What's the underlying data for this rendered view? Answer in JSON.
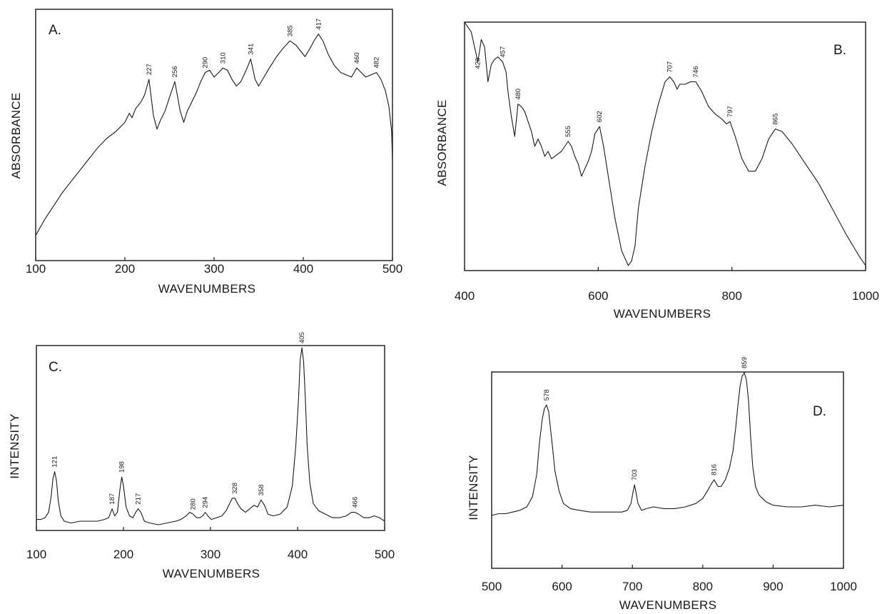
{
  "chart_data": [
    {
      "id": "A",
      "type": "line",
      "panel_label": "A.",
      "xlabel": "WAVENUMBERS",
      "ylabel": "ABSORBANCE",
      "xlim": [
        100,
        500
      ],
      "ylim": [
        0,
        1
      ],
      "xticks": [
        100,
        200,
        300,
        400,
        500
      ],
      "grid": false,
      "peaks": [
        227,
        256,
        290,
        310,
        341,
        385,
        417,
        460,
        482
      ],
      "x": [
        100,
        110,
        120,
        130,
        140,
        150,
        160,
        170,
        180,
        190,
        200,
        205,
        208,
        212,
        218,
        222,
        227,
        232,
        236,
        240,
        245,
        250,
        256,
        262,
        266,
        270,
        275,
        280,
        285,
        290,
        295,
        300,
        305,
        310,
        315,
        320,
        325,
        330,
        336,
        341,
        346,
        350,
        356,
        362,
        370,
        378,
        385,
        392,
        398,
        402,
        408,
        412,
        417,
        422,
        428,
        435,
        442,
        448,
        454,
        460,
        465,
        470,
        476,
        482,
        487,
        492,
        496,
        499,
        500
      ],
      "y": [
        0.07,
        0.14,
        0.2,
        0.26,
        0.31,
        0.36,
        0.41,
        0.46,
        0.5,
        0.53,
        0.57,
        0.61,
        0.59,
        0.63,
        0.66,
        0.69,
        0.76,
        0.6,
        0.54,
        0.58,
        0.62,
        0.68,
        0.75,
        0.62,
        0.57,
        0.62,
        0.66,
        0.7,
        0.75,
        0.79,
        0.8,
        0.77,
        0.79,
        0.81,
        0.8,
        0.76,
        0.73,
        0.75,
        0.8,
        0.85,
        0.76,
        0.73,
        0.77,
        0.81,
        0.86,
        0.9,
        0.93,
        0.91,
        0.88,
        0.86,
        0.9,
        0.93,
        0.96,
        0.93,
        0.87,
        0.82,
        0.79,
        0.78,
        0.77,
        0.81,
        0.79,
        0.77,
        0.78,
        0.79,
        0.76,
        0.71,
        0.64,
        0.53,
        0.4
      ]
    },
    {
      "id": "B",
      "type": "line",
      "panel_label": "B.",
      "xlabel": "WAVENUMBERS",
      "ylabel": "ABSORBANCE",
      "xlim": [
        400,
        1000
      ],
      "ylim": [
        0,
        1
      ],
      "xticks": [
        400,
        600,
        800,
        1000
      ],
      "grid": false,
      "peaks": [
        420,
        457,
        480,
        555,
        602,
        707,
        746,
        797,
        865
      ],
      "x": [
        400,
        410,
        415,
        420,
        425,
        430,
        435,
        440,
        445,
        450,
        457,
        462,
        465,
        470,
        475,
        480,
        485,
        490,
        495,
        500,
        505,
        510,
        515,
        520,
        525,
        530,
        535,
        540,
        545,
        550,
        555,
        560,
        565,
        570,
        575,
        580,
        585,
        590,
        595,
        602,
        608,
        615,
        625,
        635,
        645,
        650,
        655,
        660,
        670,
        680,
        690,
        700,
        707,
        713,
        718,
        722,
        730,
        738,
        746,
        755,
        765,
        775,
        785,
        792,
        797,
        805,
        815,
        825,
        835,
        845,
        855,
        865,
        875,
        890,
        910,
        930,
        950,
        970,
        990,
        1000
      ],
      "y": [
        1.0,
        0.96,
        0.9,
        0.84,
        0.93,
        0.9,
        0.76,
        0.83,
        0.85,
        0.86,
        0.84,
        0.8,
        0.72,
        0.62,
        0.54,
        0.67,
        0.66,
        0.64,
        0.6,
        0.56,
        0.5,
        0.53,
        0.5,
        0.46,
        0.48,
        0.45,
        0.46,
        0.47,
        0.48,
        0.5,
        0.52,
        0.5,
        0.46,
        0.43,
        0.38,
        0.41,
        0.44,
        0.48,
        0.55,
        0.58,
        0.5,
        0.38,
        0.21,
        0.08,
        0.02,
        0.04,
        0.1,
        0.25,
        0.42,
        0.56,
        0.67,
        0.76,
        0.78,
        0.76,
        0.73,
        0.75,
        0.75,
        0.76,
        0.76,
        0.72,
        0.66,
        0.63,
        0.61,
        0.59,
        0.6,
        0.54,
        0.45,
        0.4,
        0.4,
        0.45,
        0.53,
        0.57,
        0.56,
        0.51,
        0.43,
        0.35,
        0.25,
        0.15,
        0.06,
        0.02
      ]
    },
    {
      "id": "C",
      "type": "line",
      "panel_label": "C.",
      "xlabel": "WAVENUMBERS",
      "ylabel": "INTENSITY",
      "xlim": [
        100,
        500
      ],
      "ylim": [
        0,
        1
      ],
      "xticks": [
        100,
        200,
        300,
        400,
        500
      ],
      "grid": false,
      "peaks": [
        121,
        187,
        198,
        217,
        280,
        294,
        328,
        358,
        405,
        466
      ],
      "x": [
        100,
        105,
        110,
        114,
        117,
        119,
        121,
        123,
        125,
        128,
        132,
        140,
        150,
        160,
        170,
        178,
        183,
        187,
        190,
        193,
        196,
        198,
        200,
        203,
        207,
        211,
        214,
        217,
        220,
        224,
        230,
        240,
        250,
        260,
        266,
        272,
        276,
        280,
        284,
        288,
        291,
        294,
        297,
        301,
        307,
        313,
        318,
        322,
        325,
        328,
        331,
        335,
        340,
        345,
        350,
        354,
        358,
        362,
        366,
        372,
        380,
        388,
        394,
        398,
        401,
        403,
        405,
        407,
        409,
        411,
        414,
        418,
        424,
        432,
        440,
        448,
        456,
        462,
        466,
        470,
        476,
        482,
        488,
        494,
        500
      ],
      "y": [
        0.03,
        0.03,
        0.04,
        0.07,
        0.16,
        0.26,
        0.3,
        0.25,
        0.14,
        0.05,
        0.02,
        0.01,
        0.02,
        0.02,
        0.02,
        0.03,
        0.04,
        0.09,
        0.05,
        0.07,
        0.2,
        0.27,
        0.22,
        0.1,
        0.05,
        0.04,
        0.07,
        0.09,
        0.07,
        0.02,
        0.01,
        0.0,
        0.01,
        0.02,
        0.03,
        0.05,
        0.07,
        0.06,
        0.04,
        0.04,
        0.05,
        0.07,
        0.05,
        0.03,
        0.04,
        0.05,
        0.08,
        0.12,
        0.15,
        0.15,
        0.12,
        0.09,
        0.07,
        0.09,
        0.11,
        0.1,
        0.14,
        0.11,
        0.06,
        0.05,
        0.06,
        0.1,
        0.22,
        0.45,
        0.7,
        0.93,
        1.0,
        0.92,
        0.7,
        0.45,
        0.24,
        0.12,
        0.08,
        0.06,
        0.04,
        0.04,
        0.05,
        0.07,
        0.07,
        0.06,
        0.04,
        0.04,
        0.05,
        0.04,
        0.02
      ]
    },
    {
      "id": "D",
      "type": "line",
      "panel_label": "D.",
      "xlabel": "WAVENUMBERS",
      "ylabel": "INTENSITY",
      "xlim": [
        500,
        1000
      ],
      "ylim": [
        0,
        1
      ],
      "xticks": [
        500,
        600,
        700,
        800,
        900,
        1000
      ],
      "grid": false,
      "peaks": [
        578,
        703,
        816,
        859
      ],
      "x": [
        500,
        510,
        520,
        530,
        540,
        550,
        558,
        564,
        568,
        572,
        575,
        578,
        581,
        585,
        590,
        596,
        602,
        612,
        625,
        640,
        655,
        670,
        685,
        693,
        698,
        701,
        703,
        705,
        708,
        713,
        720,
        730,
        745,
        760,
        775,
        790,
        800,
        806,
        810,
        813,
        816,
        819,
        822,
        826,
        832,
        838,
        843,
        847,
        850,
        853,
        856,
        859,
        862,
        865,
        868,
        871,
        875,
        880,
        890,
        900,
        920,
        940,
        960,
        980,
        1000
      ],
      "y": [
        0.16,
        0.17,
        0.17,
        0.18,
        0.19,
        0.21,
        0.27,
        0.4,
        0.59,
        0.73,
        0.79,
        0.81,
        0.77,
        0.62,
        0.42,
        0.3,
        0.23,
        0.2,
        0.19,
        0.18,
        0.18,
        0.18,
        0.18,
        0.19,
        0.23,
        0.3,
        0.34,
        0.3,
        0.23,
        0.19,
        0.2,
        0.21,
        0.2,
        0.2,
        0.21,
        0.23,
        0.26,
        0.3,
        0.33,
        0.35,
        0.37,
        0.35,
        0.33,
        0.33,
        0.37,
        0.44,
        0.54,
        0.68,
        0.81,
        0.92,
        0.98,
        1.0,
        0.96,
        0.84,
        0.63,
        0.45,
        0.33,
        0.28,
        0.24,
        0.22,
        0.21,
        0.21,
        0.22,
        0.21,
        0.22
      ]
    }
  ]
}
